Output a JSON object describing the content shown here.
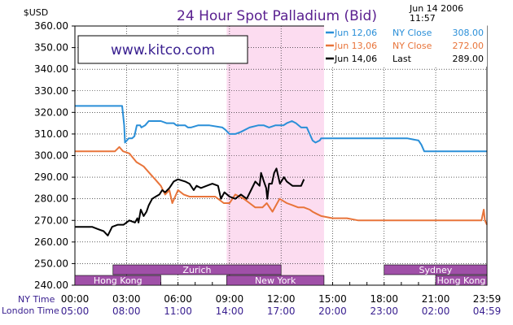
{
  "chart_data": {
    "type": "line",
    "title": "24 Hour Spot Palladium (Bid)",
    "currency_label": "$USD",
    "timestamp_date": "Jun 14 2006",
    "timestamp_time": "11:57",
    "watermark": "www.kitco.com",
    "ylim": [
      240,
      360
    ],
    "y_ticks": [
      "240.00",
      "250.00",
      "260.00",
      "270.00",
      "280.00",
      "290.00",
      "300.00",
      "310.00",
      "320.00",
      "330.00",
      "340.00",
      "350.00",
      "360.00"
    ],
    "x_range": [
      0,
      1439
    ],
    "x_ticks": [
      0,
      180,
      360,
      540,
      720,
      900,
      1080,
      1260,
      1439
    ],
    "ny_row_label": "NY Time",
    "london_row_label": "London Time",
    "ny_times": [
      "00:00",
      "03:00",
      "06:00",
      "09:00",
      "12:00",
      "15:00",
      "18:00",
      "21:00",
      "23:59"
    ],
    "london_times": [
      "05:00",
      "08:00",
      "11:00",
      "14:00",
      "17:00",
      "20:00",
      "23:00",
      "02:00",
      "04:59"
    ],
    "shaded_region": [
      530,
      870
    ],
    "sessions": [
      {
        "name": "Hong Kong",
        "start": 0,
        "end": 300,
        "row": "bottom"
      },
      {
        "name": "Zurich",
        "start": 133,
        "end": 720,
        "row": "top"
      },
      {
        "name": "New York",
        "start": 530,
        "end": 870,
        "row": "bottom"
      },
      {
        "name": "Sydney",
        "start": 1080,
        "end": 1440,
        "row": "top"
      },
      {
        "name": "Hong Kong",
        "start": 1260,
        "end": 1440,
        "row": "bottom"
      }
    ],
    "colors": {
      "jun12": "#2a8fd8",
      "jun13": "#e8743a",
      "jun14": "#000000",
      "shade": "#fcdcf0",
      "session": "#a050a8",
      "title": "#5a2090"
    },
    "series": [
      {
        "name": "Jun 12,06 NY Close 308.00",
        "legend_date": "Jun 12,06",
        "legend_kind": "NY Close",
        "legend_value": "308.00",
        "color_key": "jun12",
        "points": [
          [
            0,
            323
          ],
          [
            165,
            323
          ],
          [
            172,
            314
          ],
          [
            175,
            306
          ],
          [
            188,
            308
          ],
          [
            200,
            308
          ],
          [
            208,
            309
          ],
          [
            216,
            314
          ],
          [
            228,
            314
          ],
          [
            232,
            313
          ],
          [
            245,
            314
          ],
          [
            258,
            316
          ],
          [
            300,
            316
          ],
          [
            320,
            315
          ],
          [
            345,
            315
          ],
          [
            355,
            314
          ],
          [
            385,
            314
          ],
          [
            395,
            313
          ],
          [
            405,
            313
          ],
          [
            430,
            314
          ],
          [
            470,
            314
          ],
          [
            515,
            313
          ],
          [
            525,
            312
          ],
          [
            540,
            310
          ],
          [
            560,
            310
          ],
          [
            580,
            311
          ],
          [
            610,
            313
          ],
          [
            640,
            314
          ],
          [
            660,
            314
          ],
          [
            678,
            313
          ],
          [
            700,
            314
          ],
          [
            728,
            314
          ],
          [
            740,
            315
          ],
          [
            758,
            316
          ],
          [
            772,
            315
          ],
          [
            790,
            313
          ],
          [
            810,
            313
          ],
          [
            820,
            310
          ],
          [
            830,
            307
          ],
          [
            840,
            306
          ],
          [
            855,
            307
          ],
          [
            860,
            308
          ],
          [
            990,
            308
          ],
          [
            1050,
            308
          ],
          [
            1100,
            308
          ],
          [
            1160,
            308
          ],
          [
            1200,
            307
          ],
          [
            1210,
            305
          ],
          [
            1220,
            302
          ],
          [
            1350,
            302
          ],
          [
            1439,
            302
          ]
        ]
      },
      {
        "name": "Jun 13,06 NY Close 272.00",
        "legend_date": "Jun 13,06",
        "legend_kind": "NY Close",
        "legend_value": "272.00",
        "color_key": "jun13",
        "points": [
          [
            0,
            302
          ],
          [
            75,
            302
          ],
          [
            120,
            302
          ],
          [
            140,
            302
          ],
          [
            155,
            304
          ],
          [
            168,
            302
          ],
          [
            190,
            301
          ],
          [
            215,
            297
          ],
          [
            240,
            295
          ],
          [
            260,
            292
          ],
          [
            280,
            289
          ],
          [
            300,
            286
          ],
          [
            315,
            282
          ],
          [
            330,
            284
          ],
          [
            340,
            278
          ],
          [
            360,
            284
          ],
          [
            380,
            282
          ],
          [
            400,
            281
          ],
          [
            430,
            281
          ],
          [
            460,
            281
          ],
          [
            490,
            281
          ],
          [
            520,
            278
          ],
          [
            540,
            278
          ],
          [
            560,
            282
          ],
          [
            590,
            280
          ],
          [
            610,
            278
          ],
          [
            630,
            276
          ],
          [
            655,
            276
          ],
          [
            670,
            278
          ],
          [
            690,
            274
          ],
          [
            715,
            280
          ],
          [
            740,
            278
          ],
          [
            760,
            277
          ],
          [
            780,
            276
          ],
          [
            800,
            276
          ],
          [
            820,
            275
          ],
          [
            830,
            274
          ],
          [
            845,
            273
          ],
          [
            860,
            272
          ],
          [
            900,
            271
          ],
          [
            950,
            271
          ],
          [
            990,
            270
          ],
          [
            1040,
            270
          ],
          [
            1080,
            270
          ],
          [
            1150,
            270
          ],
          [
            1200,
            270
          ],
          [
            1265,
            270
          ],
          [
            1300,
            270
          ],
          [
            1330,
            270
          ],
          [
            1345,
            270
          ],
          [
            1380,
            270
          ],
          [
            1400,
            270
          ],
          [
            1420,
            270
          ],
          [
            1428,
            275
          ],
          [
            1432,
            270
          ],
          [
            1439,
            268
          ]
        ]
      },
      {
        "name": "Jun 14,06 Last 289.00",
        "legend_date": "Jun 14,06",
        "legend_kind": "Last",
        "legend_value": "289.00",
        "color_key": "jun14",
        "points": [
          [
            0,
            267
          ],
          [
            60,
            267
          ],
          [
            80,
            266
          ],
          [
            100,
            265
          ],
          [
            115,
            263
          ],
          [
            130,
            267
          ],
          [
            150,
            268
          ],
          [
            170,
            268
          ],
          [
            190,
            270
          ],
          [
            210,
            269
          ],
          [
            218,
            271
          ],
          [
            222,
            269
          ],
          [
            230,
            275
          ],
          [
            240,
            272
          ],
          [
            250,
            274
          ],
          [
            258,
            277
          ],
          [
            270,
            280
          ],
          [
            282,
            281
          ],
          [
            295,
            282
          ],
          [
            305,
            284
          ],
          [
            315,
            283
          ],
          [
            330,
            285
          ],
          [
            345,
            288
          ],
          [
            360,
            289
          ],
          [
            385,
            288
          ],
          [
            400,
            287
          ],
          [
            415,
            284
          ],
          [
            425,
            286
          ],
          [
            440,
            285
          ],
          [
            460,
            286
          ],
          [
            480,
            287
          ],
          [
            500,
            286
          ],
          [
            510,
            280
          ],
          [
            522,
            283
          ],
          [
            540,
            281
          ],
          [
            560,
            280
          ],
          [
            580,
            282
          ],
          [
            600,
            280
          ],
          [
            615,
            284
          ],
          [
            630,
            288
          ],
          [
            645,
            286
          ],
          [
            650,
            292
          ],
          [
            660,
            288
          ],
          [
            668,
            285
          ],
          [
            672,
            280
          ],
          [
            678,
            287
          ],
          [
            688,
            287
          ],
          [
            696,
            292
          ],
          [
            704,
            294
          ],
          [
            716,
            287
          ],
          [
            730,
            290
          ],
          [
            740,
            288
          ],
          [
            760,
            286
          ],
          [
            780,
            286
          ],
          [
            790,
            286
          ],
          [
            800,
            289
          ]
        ]
      }
    ]
  }
}
